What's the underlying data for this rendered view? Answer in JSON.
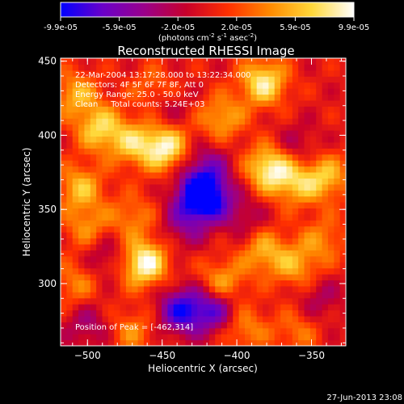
{
  "colorbar": {
    "tick_labels": [
      "-9.9e-05",
      "-5.9e-05",
      "-2.0e-05",
      "2.0e-05",
      "5.9e-05",
      "9.9e-05"
    ],
    "unit_main": "(photons cm",
    "unit_exp1": "-2",
    "unit_mid": " s",
    "unit_exp2": "-1",
    "unit_end": " asec",
    "unit_exp3": "-2",
    "unit_close": ")",
    "stops": [
      "#0000ff",
      "#6a00c8",
      "#9a008a",
      "#c8002a",
      "#ff3000",
      "#ff8a00",
      "#ffd83a",
      "#ffffff"
    ]
  },
  "chart_data": {
    "type": "heatmap",
    "title": "Reconstructed RHESSI Image",
    "xlabel": "Heliocentric X (arcsec)",
    "ylabel": "Heliocentric Y (arcsec)",
    "xlim": [
      -518,
      -327
    ],
    "ylim": [
      258,
      452
    ],
    "x_ticks": [
      -500,
      -450,
      -400,
      -350
    ],
    "y_ticks": [
      300,
      350,
      400,
      450
    ],
    "x_tick_labels": [
      "−500",
      "−450",
      "−400",
      "−350"
    ],
    "y_tick_labels": [
      "300",
      "350",
      "400",
      "450"
    ],
    "clim": [
      -9.9e-05,
      9.9e-05
    ],
    "annotations": [
      "22-Mar-2004 13:17:28.000 to 13:22:34.000",
      "Detectors: 4F 5F 6F 7F 8F, Att 0",
      "Energy Range: 25.0 - 50.0 keV",
      "Clean     Total counts: 5.24E+03"
    ],
    "peak_label": "Position of Peak = [-462,314]",
    "peak_position": [
      -462,
      314
    ],
    "features": [
      {
        "x": -508,
        "y": 428,
        "v": 0.55
      },
      {
        "x": -492,
        "y": 405,
        "v": 0.7
      },
      {
        "x": -470,
        "y": 395,
        "v": 0.6
      },
      {
        "x": -448,
        "y": 392,
        "v": 0.9
      },
      {
        "x": -410,
        "y": 412,
        "v": 0.55
      },
      {
        "x": -382,
        "y": 436,
        "v": 0.85
      },
      {
        "x": -378,
        "y": 378,
        "v": 0.9
      },
      {
        "x": -360,
        "y": 368,
        "v": 0.55
      },
      {
        "x": -340,
        "y": 372,
        "v": 0.6
      },
      {
        "x": -505,
        "y": 365,
        "v": 0.6
      },
      {
        "x": -500,
        "y": 338,
        "v": 0.45
      },
      {
        "x": -470,
        "y": 345,
        "v": 0.4
      },
      {
        "x": -462,
        "y": 314,
        "v": 1.0
      },
      {
        "x": -508,
        "y": 300,
        "v": 0.4
      },
      {
        "x": -410,
        "y": 300,
        "v": 0.6
      },
      {
        "x": -382,
        "y": 322,
        "v": 0.55
      },
      {
        "x": -360,
        "y": 312,
        "v": 0.5
      },
      {
        "x": -342,
        "y": 330,
        "v": 0.4
      },
      {
        "x": -395,
        "y": 270,
        "v": 0.45
      },
      {
        "x": -360,
        "y": 268,
        "v": 0.35
      },
      {
        "x": -470,
        "y": 268,
        "v": 0.4
      },
      {
        "x": -455,
        "y": 430,
        "v": 0.45
      },
      {
        "x": -425,
        "y": 360,
        "v": -1.0
      },
      {
        "x": -418,
        "y": 358,
        "v": -0.5
      },
      {
        "x": -437,
        "y": 282,
        "v": -0.85
      },
      {
        "x": -415,
        "y": 283,
        "v": -0.75
      },
      {
        "x": -420,
        "y": 380,
        "v": -0.45
      },
      {
        "x": -435,
        "y": 340,
        "v": -0.4
      },
      {
        "x": -488,
        "y": 320,
        "v": -0.35
      },
      {
        "x": -360,
        "y": 392,
        "v": -0.3
      },
      {
        "x": -448,
        "y": 420,
        "v": -0.35
      },
      {
        "x": -395,
        "y": 345,
        "v": -0.3
      },
      {
        "x": -500,
        "y": 272,
        "v": -0.35
      },
      {
        "x": -345,
        "y": 290,
        "v": -0.3
      }
    ]
  },
  "footer_timestamp": "27-Jun-2013 23:08"
}
